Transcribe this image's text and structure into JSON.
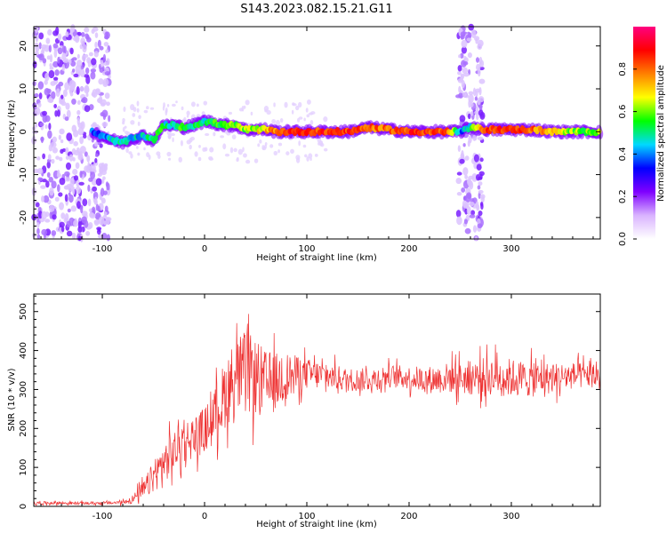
{
  "figure": {
    "title": "S143.2023.082.15.21.G11"
  },
  "chart_data": [
    {
      "type": "heatmap",
      "xlabel": "Height of straight line (km)",
      "ylabel": "Frequency (Hz)",
      "xlim": [
        -167,
        387
      ],
      "ylim": [
        -25,
        24.5
      ],
      "xticks": [
        -100,
        0,
        100,
        200,
        300
      ],
      "yticks": [
        -20,
        -10,
        0,
        10,
        20
      ],
      "colorbar": {
        "label": "Normalized spectral amplitude",
        "range": [
          0.0,
          1.0
        ],
        "ticks": [
          0.0,
          0.2,
          0.4,
          0.6,
          0.8
        ],
        "colors": [
          "#ffffff",
          "#d9b3ff",
          "#7f00ff",
          "#0000ff",
          "#00d9ff",
          "#00ff00",
          "#ffff00",
          "#ff8000",
          "#ff0000",
          "#ff0080"
        ]
      },
      "noise_regions": [
        {
          "x_start": -167,
          "x_end": -93,
          "freq_range": [
            -25,
            24.5
          ]
        },
        {
          "x_start": 248,
          "x_end": 272,
          "freq_range": [
            -25,
            24.5
          ]
        }
      ],
      "ridge": {
        "x": [
          -110,
          -100,
          -90,
          -80,
          -70,
          -60,
          -50,
          -40,
          -30,
          -20,
          -10,
          0,
          10,
          20,
          30,
          40,
          50,
          60,
          70,
          80,
          100,
          120,
          140,
          160,
          180,
          200,
          220,
          240,
          250,
          260,
          275,
          300,
          320,
          340,
          360,
          387
        ],
        "freq": [
          0,
          -1,
          -2,
          -2.5,
          -1.5,
          -1,
          -2,
          1.5,
          1.5,
          1,
          1.5,
          2.5,
          2,
          1.5,
          1.5,
          0.5,
          0.5,
          0.5,
          0,
          0,
          0,
          0,
          0,
          1,
          0.5,
          0,
          0,
          0,
          0,
          1,
          0.5,
          0.5,
          0.5,
          0,
          0,
          0
        ],
        "amplitude": [
          0.35,
          0.4,
          0.45,
          0.5,
          0.45,
          0.45,
          0.55,
          0.5,
          0.5,
          0.55,
          0.5,
          0.5,
          0.55,
          0.55,
          0.6,
          0.6,
          0.65,
          0.7,
          0.8,
          0.85,
          0.85,
          0.85,
          0.85,
          0.8,
          0.8,
          0.85,
          0.85,
          0.8,
          0.4,
          0.5,
          0.85,
          0.85,
          0.8,
          0.7,
          0.6,
          0.6
        ]
      }
    },
    {
      "type": "line",
      "xlabel": "Height of straight line (km)",
      "ylabel": "SNR (10 * v/v)",
      "xlim": [
        -167,
        387
      ],
      "ylim": [
        0,
        545
      ],
      "xticks": [
        -100,
        0,
        100,
        200,
        300
      ],
      "yticks": [
        0,
        100,
        200,
        300,
        400,
        500
      ],
      "series": [
        {
          "color": "#ee3333",
          "x": [
            -167,
            -150,
            -130,
            -110,
            -90,
            -80,
            -70,
            -60,
            -50,
            -40,
            -30,
            -20,
            -10,
            0,
            10,
            20,
            30,
            40,
            50,
            60,
            70,
            80,
            100,
            120,
            140,
            160,
            180,
            200,
            220,
            240,
            260,
            280,
            300,
            320,
            340,
            360,
            387
          ],
          "y": [
            8,
            9,
            8,
            8,
            9,
            11,
            18,
            40,
            75,
            110,
            140,
            165,
            180,
            195,
            230,
            290,
            335,
            340,
            330,
            310,
            320,
            335,
            340,
            335,
            325,
            325,
            335,
            330,
            325,
            330,
            330,
            335,
            330,
            325,
            330,
            335,
            335
          ],
          "spread": [
            4,
            4,
            4,
            4,
            4,
            6,
            12,
            25,
            40,
            50,
            55,
            55,
            55,
            60,
            70,
            90,
            100,
            110,
            100,
            90,
            75,
            60,
            40,
            35,
            30,
            30,
            30,
            30,
            35,
            40,
            45,
            50,
            50,
            45,
            40,
            35,
            30
          ]
        }
      ]
    }
  ]
}
